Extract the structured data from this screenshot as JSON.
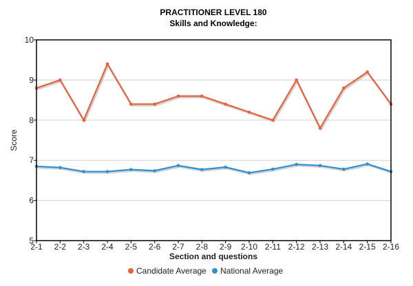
{
  "chart_data": {
    "type": "line",
    "title": "PRACTITIONER LEVEL 180",
    "subtitle": "Skills and Knowledge:",
    "xlabel": "Section and questions",
    "ylabel": "Score",
    "categories": [
      "2-1",
      "2-2",
      "2-3",
      "2-4",
      "2-5",
      "2-6",
      "2-7",
      "2-8",
      "2-9",
      "2-10",
      "2-11",
      "2-12",
      "2-13",
      "2-14",
      "2-15",
      "2-16"
    ],
    "ylim": [
      5,
      10
    ],
    "yticks": [
      "5",
      "6",
      "7",
      "8",
      "9",
      "10"
    ],
    "grid": true,
    "legend_position": "bottom",
    "series": [
      {
        "name": "Candidate Average",
        "color": "#e8603c",
        "values": [
          8.8,
          9.0,
          8.0,
          9.4,
          8.4,
          8.4,
          8.6,
          8.6,
          8.4,
          8.2,
          8.0,
          9.0,
          7.8,
          8.8,
          9.2,
          8.4
        ]
      },
      {
        "name": "National Average",
        "color": "#2f8fd0",
        "values": [
          6.85,
          6.82,
          6.72,
          6.72,
          6.77,
          6.74,
          6.87,
          6.77,
          6.83,
          6.69,
          6.78,
          6.9,
          6.87,
          6.78,
          6.91,
          6.72
        ]
      }
    ]
  }
}
